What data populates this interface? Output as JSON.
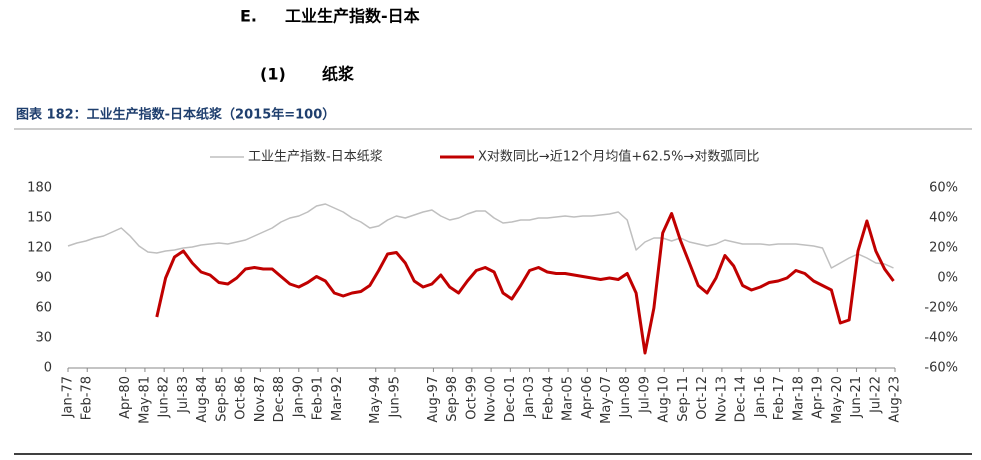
{
  "header": {
    "section": "E.",
    "title": "工业生产指数-日本",
    "sub_number": "(1)",
    "sub_title": "纸浆"
  },
  "chart_data": {
    "type": "line",
    "title": "图表 182：工业生产指数-日本纸浆（2015年=100）",
    "x": [
      "Jan-77",
      "Jul-77",
      "Jan-78",
      "Jul-78",
      "Jan-79",
      "Jul-79",
      "Jan-80",
      "Jul-80",
      "Jan-81",
      "Jul-81",
      "Jan-82",
      "Jul-82",
      "Jan-83",
      "Jul-83",
      "Jan-84",
      "Jul-84",
      "Jan-85",
      "Jul-85",
      "Jan-86",
      "Jul-86",
      "Jan-87",
      "Jul-87",
      "Jan-88",
      "Jul-88",
      "Jan-89",
      "Jul-89",
      "Jan-90",
      "Jul-90",
      "Jan-91",
      "Jul-91",
      "Jan-92",
      "Jul-92",
      "Jan-93",
      "Jul-93",
      "Jan-94",
      "Jul-94",
      "Jan-95",
      "Jul-95",
      "Jan-96",
      "Jul-96",
      "Jan-97",
      "Jul-97",
      "Jan-98",
      "Jul-98",
      "Jan-99",
      "Jul-99",
      "Jan-00",
      "Jul-00",
      "Jan-01",
      "Jul-01",
      "Jan-02",
      "Jul-02",
      "Jan-03",
      "Jul-03",
      "Jan-04",
      "Jul-04",
      "Jan-05",
      "Jul-05",
      "Jan-06",
      "Jul-06",
      "Jan-07",
      "Jul-07",
      "Jan-08",
      "Jul-08",
      "Jan-09",
      "Jul-09",
      "Jan-10",
      "Jul-10",
      "Jan-11",
      "Jul-11",
      "Jan-12",
      "Jul-12",
      "Jan-13",
      "Jul-13",
      "Jan-14",
      "Jul-14",
      "Jan-15",
      "Jul-15",
      "Jan-16",
      "Jul-16",
      "Jan-17",
      "Jul-17",
      "Jan-18",
      "Jul-18",
      "Jan-19",
      "Jul-19",
      "Jan-20",
      "Jul-20",
      "Jan-21",
      "Jul-21",
      "Jan-22",
      "Jul-22",
      "Jan-23",
      "Jul-23"
    ],
    "series": [
      {
        "name": "工业生产指数-日本纸浆",
        "color": "#bfbfbf",
        "axis": "y",
        "values": [
          122,
          125,
          127,
          130,
          132,
          136,
          140,
          132,
          122,
          116,
          115,
          117,
          118,
          120,
          121,
          123,
          124,
          125,
          124,
          126,
          128,
          132,
          136,
          140,
          146,
          150,
          152,
          156,
          162,
          164,
          160,
          156,
          150,
          146,
          140,
          142,
          148,
          152,
          150,
          153,
          156,
          158,
          152,
          148,
          150,
          154,
          157,
          157,
          150,
          145,
          146,
          148,
          148,
          150,
          150,
          151,
          152,
          151,
          152,
          152,
          153,
          154,
          156,
          148,
          118,
          126,
          130,
          130,
          127,
          130,
          126,
          124,
          122,
          124,
          128,
          126,
          124,
          124,
          124,
          123,
          124,
          124,
          124,
          123,
          122,
          120,
          100,
          105,
          110,
          114,
          110,
          105,
          104,
          100
        ]
      },
      {
        "name": "X对数同比→近12个月均值+62.5%→对数弧同比",
        "color": "#c00000",
        "axis": "y2",
        "values": [
          null,
          null,
          null,
          null,
          null,
          null,
          null,
          null,
          null,
          null,
          -26,
          0,
          14,
          18,
          10,
          4,
          2,
          -3,
          -4,
          0,
          6,
          7,
          6,
          6,
          1,
          -4,
          -6,
          -3,
          1,
          -2,
          -10,
          -12,
          -10,
          -9,
          -5,
          5,
          16,
          17,
          10,
          -2,
          -6,
          -4,
          2,
          -6,
          -10,
          -2,
          5,
          7,
          4,
          -10,
          -14,
          -5,
          5,
          7,
          4,
          3,
          3,
          2,
          1,
          0,
          -1,
          0,
          -1,
          3,
          -10,
          -50,
          -20,
          30,
          43,
          25,
          10,
          -5,
          -10,
          0,
          15,
          8,
          -5,
          -8,
          -6,
          -3,
          -2,
          0,
          5,
          3,
          -2,
          -5,
          -8,
          -30,
          -28,
          18,
          38,
          18,
          6,
          -2
        ]
      }
    ],
    "xticks": [
      "Jan-77",
      "Feb-78",
      "Apr-80",
      "May-81",
      "Jun-82",
      "Jul-83",
      "Aug-84",
      "Sep-85",
      "Oct-86",
      "Nov-87",
      "Dec-88",
      "Jan-90",
      "Feb-91",
      "Mar-92",
      "May-94",
      "Jun-95",
      "Aug-97",
      "Sep-98",
      "Oct-99",
      "Nov-00",
      "Dec-01",
      "Jan-03",
      "Feb-04",
      "Mar-05",
      "Apr-06",
      "May-07",
      "Jun-08",
      "Jul-09",
      "Aug-10",
      "Sep-11",
      "Oct-12",
      "Nov-13",
      "Dec-14",
      "Jan-16",
      "Feb-17",
      "Mar-18",
      "Apr-19",
      "May-20",
      "Jun-21",
      "Jul-22",
      "Aug-23"
    ],
    "ylim": [
      0,
      180
    ],
    "yticks": [
      0,
      30,
      60,
      90,
      120,
      150,
      180
    ],
    "y2lim": [
      -60,
      60
    ],
    "y2ticks": [
      {
        "value": -60,
        "label": "-60%"
      },
      {
        "value": -40,
        "label": "-40%"
      },
      {
        "value": -20,
        "label": "-20%"
      },
      {
        "value": 0,
        "label": "0%"
      },
      {
        "value": 20,
        "label": "20%"
      },
      {
        "value": 40,
        "label": "40%"
      },
      {
        "value": 60,
        "label": "60%"
      }
    ],
    "grid": false,
    "legend": "top"
  }
}
